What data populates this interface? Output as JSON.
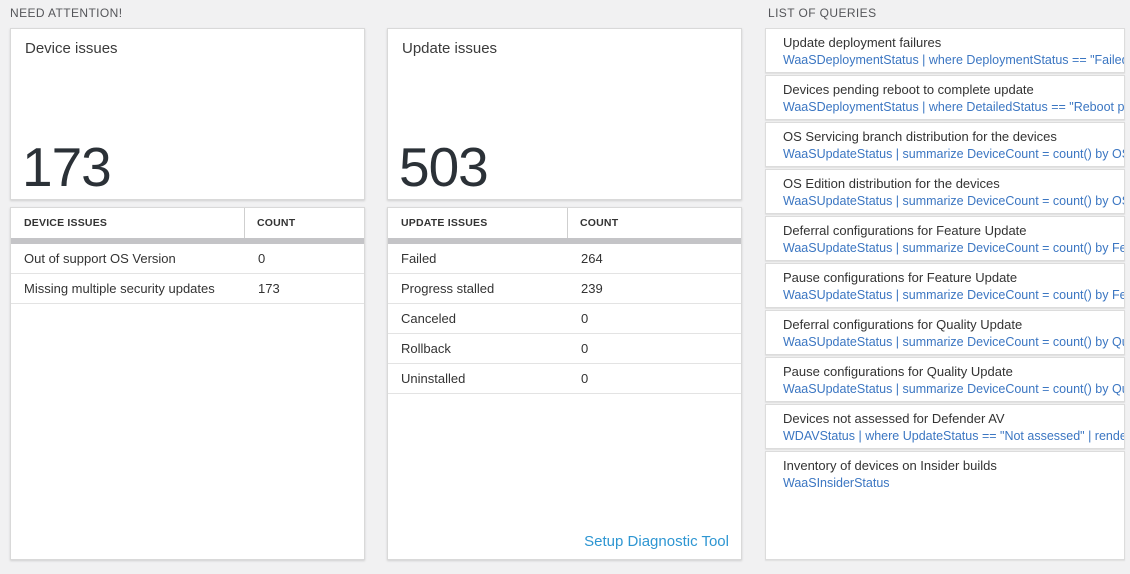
{
  "colors": {
    "background": "#f1f1f2",
    "card_background": "#ffffff",
    "section_label": "#55565a",
    "big_number": "#2b3137",
    "query_link_blue": "#3b76c2",
    "setup_link_blue": "#2e96d2",
    "scrollbar_thumb": "#c4c4c7"
  },
  "sections": {
    "need_attention_label": "NEED ATTENTION!",
    "list_of_queries_label": "LIST OF QUERIES"
  },
  "device_card": {
    "title": "Device issues",
    "value": "173",
    "headers": [
      "DEVICE ISSUES",
      "COUNT"
    ],
    "rows": [
      {
        "label": "Out of support OS Version",
        "count": "0"
      },
      {
        "label": "Missing multiple security updates",
        "count": "173"
      }
    ]
  },
  "update_card": {
    "title": "Update issues",
    "value": "503",
    "headers": [
      "UPDATE ISSUES",
      "COUNT"
    ],
    "rows": [
      {
        "label": "Failed",
        "count": "264"
      },
      {
        "label": "Progress stalled",
        "count": "239"
      },
      {
        "label": "Canceled",
        "count": "0"
      },
      {
        "label": "Rollback",
        "count": "0"
      },
      {
        "label": "Uninstalled",
        "count": "0"
      }
    ],
    "setup_link_label": "Setup Diagnostic Tool"
  },
  "queries": {
    "items": [
      {
        "title": "Update deployment failures",
        "query": "WaaSDeploymentStatus | where DeploymentStatus == \"Failed\" |..."
      },
      {
        "title": "Devices pending reboot to complete update",
        "query": "WaaSDeploymentStatus | where DetailedStatus == \"Reboot pend..."
      },
      {
        "title": "OS Servicing branch distribution for the devices",
        "query": "WaaSUpdateStatus | summarize DeviceCount = count() by OSSer..."
      },
      {
        "title": "OS Edition distribution for the devices",
        "query": "WaaSUpdateStatus | summarize DeviceCount = count() by OSEdit..."
      },
      {
        "title": "Deferral configurations for Feature Update",
        "query": "WaaSUpdateStatus | summarize DeviceCount = count() by Featur..."
      },
      {
        "title": "Pause configurations for Feature Update",
        "query": "WaaSUpdateStatus | summarize DeviceCount = count() by Featur..."
      },
      {
        "title": "Deferral configurations for Quality Update",
        "query": "WaaSUpdateStatus | summarize DeviceCount = count() by Qualit..."
      },
      {
        "title": "Pause configurations for Quality Update",
        "query": "WaaSUpdateStatus | summarize DeviceCount = count() by Qualit..."
      },
      {
        "title": "Devices not assessed for Defender AV",
        "query": "WDAVStatus | where UpdateStatus == \"Not assessed\" | render ta..."
      },
      {
        "title": "Inventory of devices on Insider builds",
        "query": "WaaSInsiderStatus"
      }
    ]
  }
}
